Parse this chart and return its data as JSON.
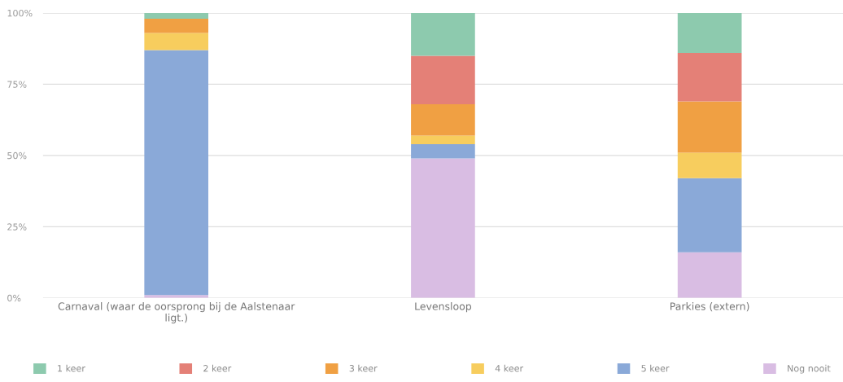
{
  "chart_data": {
    "type": "bar",
    "stacked": true,
    "categories": [
      "Carnaval (waar de oorsprong bij de Aalstenaar ligt.)",
      "Levensloop",
      "Parkies (extern)"
    ],
    "series": [
      {
        "name": "Nog nooit",
        "color": "#d9bde3",
        "values": [
          1,
          49,
          16
        ]
      },
      {
        "name": "5 keer",
        "color": "#8aa9d8",
        "values": [
          86,
          5,
          26
        ]
      },
      {
        "name": "4 keer",
        "color": "#f7cd5e",
        "values": [
          6,
          3,
          9
        ]
      },
      {
        "name": "3 keer",
        "color": "#f0a043",
        "values": [
          5,
          11,
          18
        ]
      },
      {
        "name": "2 keer",
        "color": "#e48077",
        "values": [
          null,
          17,
          17
        ]
      },
      {
        "name": "1 keer",
        "color": "#8dcaae",
        "values": [
          2,
          15,
          14
        ]
      }
    ],
    "ylim": [
      0,
      100
    ],
    "yticks": [
      {
        "value": 0,
        "label": "0%"
      },
      {
        "value": 25,
        "label": "25%"
      },
      {
        "value": 50,
        "label": "50%"
      },
      {
        "value": 75,
        "label": "75%"
      },
      {
        "value": 100,
        "label": "100%"
      }
    ],
    "grid": "y",
    "legend": "bottom"
  }
}
